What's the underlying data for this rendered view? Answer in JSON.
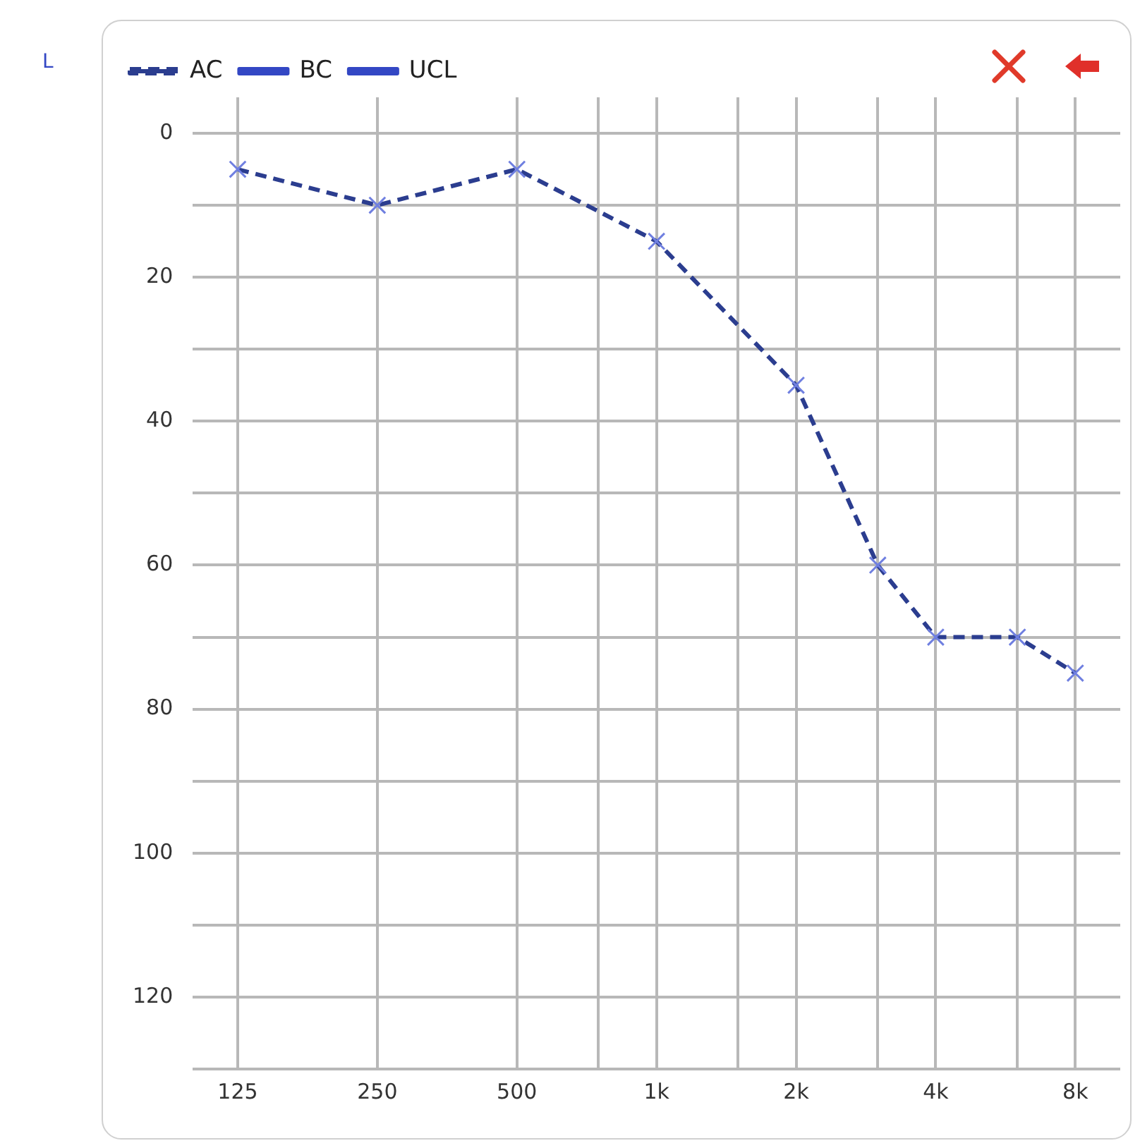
{
  "chart_data": {
    "type": "line",
    "annotations": [
      "L"
    ],
    "x": [
      125,
      250,
      500,
      1000,
      2000,
      3000,
      4000,
      6000,
      8000
    ],
    "series": [
      {
        "name": "AC",
        "color": "#2b3d8f",
        "values": [
          5,
          10,
          5,
          15,
          35,
          60,
          70,
          70,
          75
        ],
        "marker": "cross",
        "line_style": "dashed"
      },
      {
        "name": "BC",
        "color": "#3347c4",
        "values": [
          null,
          null,
          null,
          null,
          null,
          null,
          null,
          null,
          null
        ],
        "marker": "none",
        "line_style": "solid"
      },
      {
        "name": "UCL",
        "color": "#3347c4",
        "values": [
          null,
          null,
          null,
          null,
          null,
          null,
          null,
          null,
          null
        ],
        "marker": "none",
        "line_style": "solid"
      }
    ],
    "log": "x",
    "xlim": [
      100,
      10000
    ],
    "xticks": [
      125,
      250,
      500,
      {
        "value": 750,
        "label": null
      },
      {
        "value": 1000,
        "label": "1k"
      },
      {
        "value": 1500,
        "label": null
      },
      {
        "value": 2000,
        "label": "2k"
      },
      {
        "value": 3000,
        "label": null
      },
      {
        "value": 4000,
        "label": "4k"
      },
      {
        "value": 6000,
        "label": null
      },
      {
        "value": 8000,
        "label": "8k"
      }
    ],
    "ylim": [
      130,
      -5
    ],
    "yticks": [
      0,
      {
        "value": 10,
        "label": null
      },
      20,
      {
        "value": 30,
        "label": null
      },
      40,
      {
        "value": 50,
        "label": null
      },
      60,
      {
        "value": 70,
        "label": null
      },
      80,
      {
        "value": 90,
        "label": null
      },
      100,
      {
        "value": 110,
        "label": null
      },
      120,
      {
        "value": 130,
        "label": null
      }
    ],
    "grid": true,
    "legend": "top left"
  }
}
